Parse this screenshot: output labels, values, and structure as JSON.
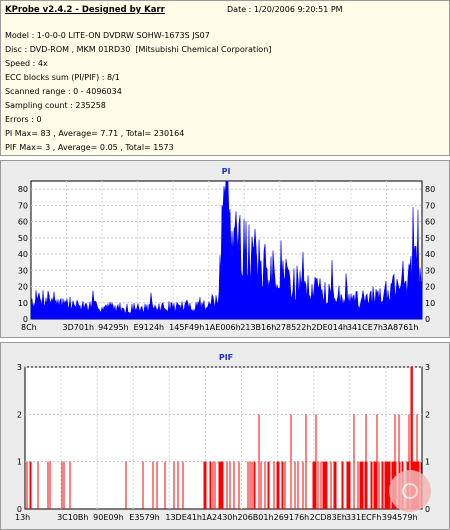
{
  "info": {
    "app_title": "KProbe v2.4.2 - Designed by Karr",
    "date": "Date : 1/20/2006 9:20:51 PM",
    "lines": [
      "Model : 1-0-0-0 LITE-ON DVDRW SOHW-1673S JS07",
      "Disc : DVD-ROM , MKM 01RD30  [Mitsubishi Chemical Corporation]",
      "Speed : 4x",
      "ECC blocks sum (PI/PIF) : 8/1",
      "Scanned range : 0 - 4096034",
      "Sampling count : 235258",
      "Errors : 0",
      "PI Max= 83 , Average= 7.71 , Total= 230164",
      "PIF Max= 3 , Average= 0.05 , Total= 1573"
    ]
  },
  "chart_data": [
    {
      "type": "area",
      "title": "PI",
      "xlabel": "",
      "ylabel": "",
      "ylim": [
        0,
        85
      ],
      "yticks": [
        0,
        10,
        20,
        30,
        40,
        50,
        60,
        70,
        80
      ],
      "xticks": [
        "8Ch",
        "3D701h",
        "94295h",
        "E9124h",
        "145F49h",
        "1AE006h",
        "213B16h",
        "278522h",
        "2DE014h",
        "341CE7h",
        "3A8761h"
      ],
      "color": "#0000ff",
      "grid": true,
      "profile": [
        [
          0,
          12
        ],
        [
          4,
          15
        ],
        [
          8,
          11
        ],
        [
          12,
          9
        ],
        [
          16,
          8
        ],
        [
          20,
          8
        ],
        [
          24,
          7
        ],
        [
          28,
          7
        ],
        [
          32,
          7.5
        ],
        [
          36,
          8
        ],
        [
          40,
          8.5
        ],
        [
          44,
          9
        ],
        [
          48,
          12
        ],
        [
          49,
          60
        ],
        [
          50,
          83
        ],
        [
          51,
          70
        ],
        [
          53,
          55
        ],
        [
          55,
          45
        ],
        [
          58,
          38
        ],
        [
          62,
          30
        ],
        [
          66,
          26
        ],
        [
          70,
          22
        ],
        [
          74,
          19
        ],
        [
          78,
          16
        ],
        [
          82,
          14
        ],
        [
          85,
          13
        ],
        [
          88,
          15
        ],
        [
          91,
          19
        ],
        [
          94,
          25
        ],
        [
          97,
          31
        ],
        [
          98.5,
          36
        ],
        [
          99.3,
          30
        ],
        [
          100,
          15
        ]
      ]
    },
    {
      "type": "bar",
      "title": "PIF",
      "xlabel": "",
      "ylabel": "",
      "ylim": [
        0,
        3
      ],
      "yticks": [
        0,
        1,
        2,
        3
      ],
      "xticks": [
        "13h",
        "3C10Bh",
        "90E09h",
        "E3579h",
        "13DE41h",
        "1A2430h",
        "206B01h",
        "269176h",
        "2CD83Eh",
        "331ECFh",
        "394579h"
      ],
      "color": "#ff0000",
      "grid": true,
      "max": 3,
      "total": 1573
    }
  ]
}
